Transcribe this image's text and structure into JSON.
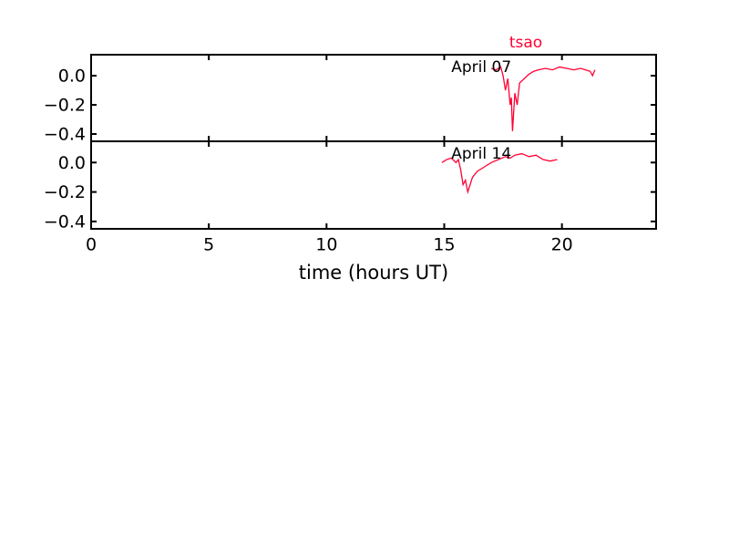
{
  "chart_data": [
    {
      "type": "line",
      "title": "tsao",
      "annotation": "April 07",
      "color": "#ff0033",
      "x": [
        17.0,
        17.2,
        17.4,
        17.5,
        17.6,
        17.7,
        17.8,
        17.85,
        17.9,
        18.0,
        18.1,
        18.2,
        18.4,
        18.6,
        18.8,
        19.0,
        19.3,
        19.6,
        19.9,
        20.2,
        20.5,
        20.8,
        21.0,
        21.2,
        21.3,
        21.4
      ],
      "values": [
        0.05,
        0.04,
        0.06,
        0.0,
        -0.1,
        -0.02,
        -0.2,
        -0.15,
        -0.38,
        -0.12,
        -0.2,
        -0.05,
        -0.02,
        0.01,
        0.03,
        0.04,
        0.05,
        0.04,
        0.06,
        0.05,
        0.04,
        0.05,
        0.04,
        0.03,
        0.0,
        0.04
      ],
      "xlim": [
        0,
        24
      ],
      "xticks": [
        0,
        5,
        10,
        15,
        20
      ],
      "ylim": [
        -0.45,
        0.144
      ],
      "yticks": [
        {
          "value": -0.4,
          "label": "−0.4"
        },
        {
          "value": -0.2,
          "label": "−0.2"
        },
        {
          "value": 0.0,
          "label": "0.0"
        }
      ]
    },
    {
      "type": "line",
      "annotation": "April 14",
      "color": "#ff0033",
      "xlabel": "time (hours UT)",
      "x": [
        14.9,
        15.1,
        15.3,
        15.5,
        15.6,
        15.7,
        15.8,
        15.9,
        16.0,
        16.1,
        16.2,
        16.4,
        16.6,
        16.8,
        17.0,
        17.3,
        17.6,
        17.8,
        18.0,
        18.3,
        18.6,
        18.9,
        19.2,
        19.5,
        19.8
      ],
      "values": [
        0.0,
        0.02,
        0.03,
        0.0,
        0.02,
        -0.05,
        -0.15,
        -0.12,
        -0.2,
        -0.15,
        -0.1,
        -0.06,
        -0.04,
        -0.02,
        0.0,
        0.02,
        0.04,
        0.03,
        0.05,
        0.06,
        0.04,
        0.05,
        0.02,
        0.01,
        0.02
      ],
      "xlim": [
        0,
        24
      ],
      "xticks": [
        0,
        5,
        10,
        15,
        20
      ],
      "ylim": [
        -0.45,
        0.144
      ],
      "yticks": [
        {
          "value": -0.4,
          "label": "−0.4"
        },
        {
          "value": -0.2,
          "label": "−0.2"
        },
        {
          "value": 0.0,
          "label": "0.0"
        }
      ]
    }
  ]
}
